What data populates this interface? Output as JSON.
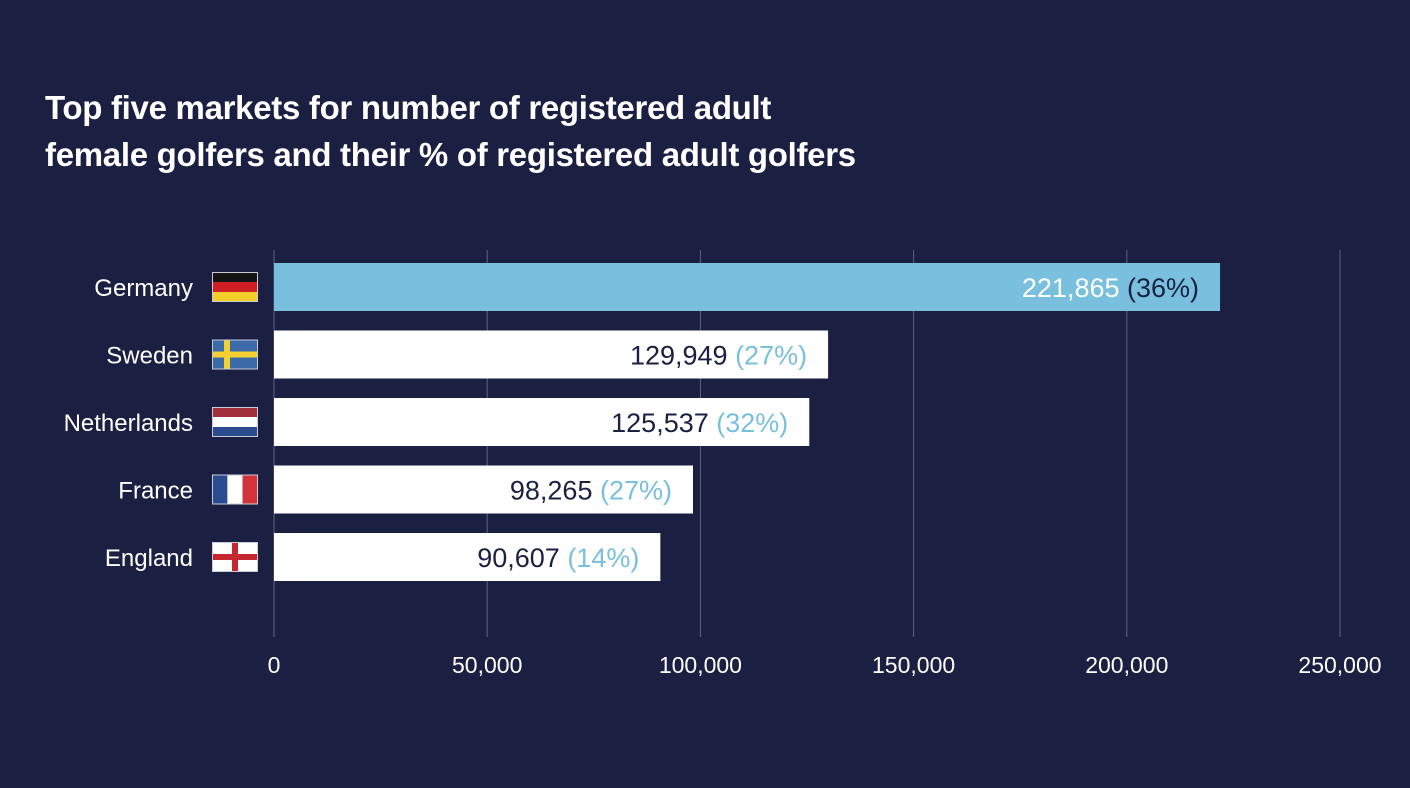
{
  "chart_data": {
    "type": "bar",
    "orientation": "horizontal",
    "title": "Top five markets for number of registered adult female golfers and their % of registered adult golfers",
    "title_lines": [
      "Top five markets for number of registered adult",
      "female golfers and their % of registered adult golfers"
    ],
    "categories": [
      "Germany",
      "Sweden",
      "Netherlands",
      "France",
      "England"
    ],
    "values": [
      221865,
      129949,
      125537,
      98265,
      90607
    ],
    "value_labels": [
      "221,865",
      "129,949",
      "125,537",
      "98,265",
      "90,607"
    ],
    "percent_labels": [
      "(36%)",
      "(27%)",
      "(32%)",
      "(27%)",
      "(14%)"
    ],
    "flags": [
      "germany-flag-icon",
      "sweden-flag-icon",
      "netherlands-flag-icon",
      "france-flag-icon",
      "england-flag-icon"
    ],
    "highlight_index": 0,
    "xlim": [
      0,
      250000
    ],
    "xticks": [
      0,
      50000,
      100000,
      150000,
      200000,
      250000
    ],
    "xtick_labels": [
      "0",
      "50,000",
      "100,000",
      "150,000",
      "200,000",
      "250,000"
    ],
    "xlabel": "",
    "ylabel": "",
    "grid": true,
    "legend": "none"
  },
  "colors": {
    "background": "#1b2043",
    "bar": "#ffffff",
    "bar_highlight": "#79c0de",
    "value_text": "#1b2043",
    "value_text_highlight": "#ffffff",
    "percent_text": "#79c0de",
    "percent_text_highlight": "#1b2043",
    "gridline": "#5d6284"
  }
}
